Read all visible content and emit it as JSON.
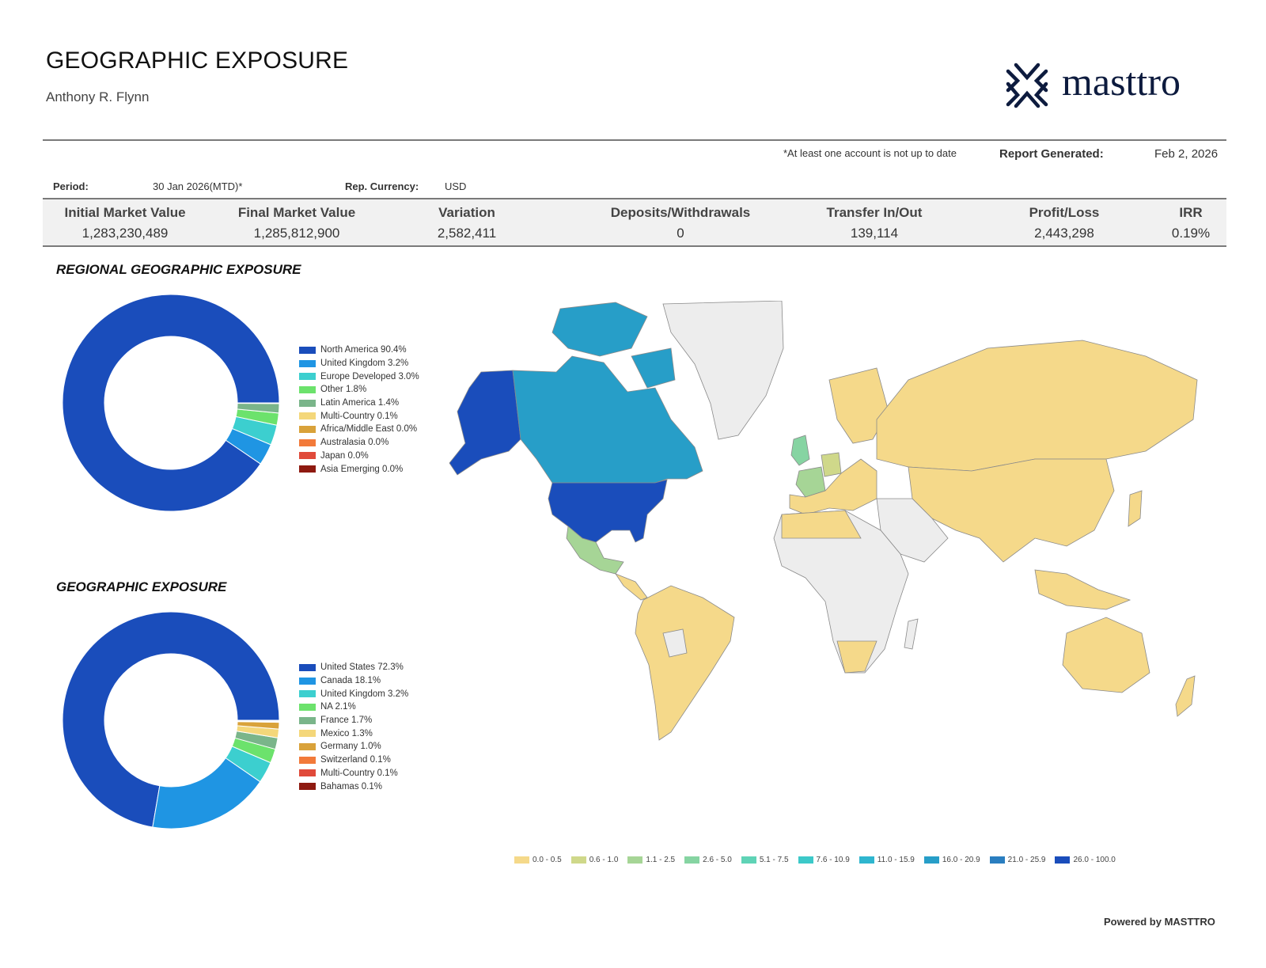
{
  "header": {
    "title": "GEOGRAPHIC EXPOSURE",
    "client": "Anthony R. Flynn",
    "logo_text": "masttro"
  },
  "notice": "*At least one account is not up to date",
  "report_generated": {
    "label": "Report Generated:",
    "value": "Feb 2, 2026"
  },
  "meta": {
    "period_label": "Period:",
    "period_value": "30 Jan 2026(MTD)*",
    "currency_label": "Rep. Currency:",
    "currency_value": "USD"
  },
  "summary": [
    {
      "label": "Initial Market Value",
      "value": "1,283,230,489"
    },
    {
      "label": "Final Market Value",
      "value": "1,285,812,900"
    },
    {
      "label": "Variation",
      "value": "2,582,411"
    },
    {
      "label": "Deposits/Withdrawals",
      "value": "0"
    },
    {
      "label": "Transfer In/Out",
      "value": "139,114"
    },
    {
      "label": "Profit/Loss",
      "value": "2,443,298"
    },
    {
      "label": "IRR",
      "value": "0.19%"
    }
  ],
  "sections": {
    "regional": "REGIONAL GEOGRAPHIC EXPOSURE",
    "geographic": "GEOGRAPHIC EXPOSURE"
  },
  "chart_data": [
    {
      "type": "pie",
      "donut": true,
      "title": "REGIONAL GEOGRAPHIC EXPOSURE",
      "legend_position": "right",
      "categories": [
        "North America",
        "United Kingdom",
        "Europe Developed",
        "Other",
        "Latin America",
        "Multi-Country",
        "Africa/Middle East",
        "Australasia",
        "Japan",
        "Asia Emerging"
      ],
      "values": [
        90.4,
        3.2,
        3.0,
        1.8,
        1.4,
        0.1,
        0.0,
        0.0,
        0.0,
        0.0
      ],
      "labels": [
        "North America 90.4%",
        "United Kingdom 3.2%",
        "Europe Developed 3.0%",
        "Other 1.8%",
        "Latin America 1.4%",
        "Multi-Country 0.1%",
        "Africa/Middle East 0.0%",
        "Australasia 0.0%",
        "Japan 0.0%",
        "Asia Emerging 0.0%"
      ],
      "colors": [
        "#1a4dbb",
        "#1f95e3",
        "#3ccfcf",
        "#6ce26c",
        "#7ab58a",
        "#f4d77a",
        "#d9a23a",
        "#f27a3a",
        "#e04a3a",
        "#8e1a10"
      ]
    },
    {
      "type": "pie",
      "donut": true,
      "title": "GEOGRAPHIC EXPOSURE",
      "legend_position": "right",
      "categories": [
        "United States",
        "Canada",
        "United Kingdom",
        "NA",
        "France",
        "Mexico",
        "Germany",
        "Switzerland",
        "Multi-Country",
        "Bahamas"
      ],
      "values": [
        72.3,
        18.1,
        3.2,
        2.1,
        1.7,
        1.3,
        1.0,
        0.1,
        0.1,
        0.1
      ],
      "labels": [
        "United States 72.3%",
        "Canada 18.1%",
        "United Kingdom 3.2%",
        "NA 2.1%",
        "France 1.7%",
        "Mexico 1.3%",
        "Germany 1.0%",
        "Switzerland 0.1%",
        "Multi-Country 0.1%",
        "Bahamas 0.1%"
      ],
      "colors": [
        "#1a4dbb",
        "#1f95e3",
        "#3ccfcf",
        "#6ce26c",
        "#7ab58a",
        "#f4d77a",
        "#d9a23a",
        "#f27a3a",
        "#e04a3a",
        "#8e1a10"
      ]
    },
    {
      "type": "heatmap",
      "subtype": "choropleth-world-map",
      "bins": [
        "0.0 - 0.5",
        "0.6 - 1.0",
        "1.1 - 2.5",
        "2.6 - 5.0",
        "5.1 - 7.5",
        "7.6 - 10.9",
        "11.0 - 15.9",
        "16.0 - 20.9",
        "21.0 - 25.9",
        "26.0 - 100.0"
      ],
      "bin_colors": [
        "#f5d98a",
        "#cfd88a",
        "#a6d596",
        "#86d4a2",
        "#5fd3b6",
        "#3cc9c9",
        "#2fb6cf",
        "#279ec8",
        "#2a7ec0",
        "#1a4dbb"
      ],
      "no_data_color": "#ededed",
      "regions": [
        {
          "name": "United States",
          "value": 72.3
        },
        {
          "name": "Canada",
          "value": 18.1
        },
        {
          "name": "United Kingdom",
          "value": 3.2
        },
        {
          "name": "France",
          "value": 1.7
        },
        {
          "name": "Mexico",
          "value": 1.3
        },
        {
          "name": "Germany",
          "value": 1.0
        }
      ]
    }
  ],
  "footer": {
    "powered_by": "Powered by MASTTRO"
  }
}
